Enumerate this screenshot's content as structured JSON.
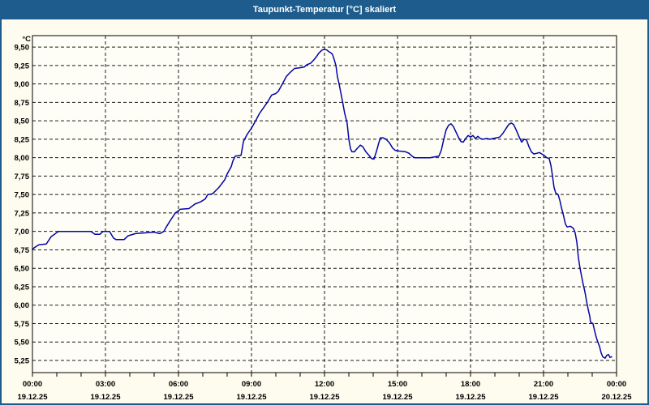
{
  "window": {
    "title": "Taupunkt-Temperatur [°C] skaliert"
  },
  "colors": {
    "titlebar_background": "#1d5c8c",
    "titlebar_text": "#ffffff",
    "window_border": "#1d5c8c",
    "page_background": "#fdfcee",
    "plot_background": "#fffef6",
    "grid_color": "#1a1a1a",
    "axis_color": "#000000",
    "line_color": "#0303a6"
  },
  "chart_data": {
    "type": "line",
    "title": "Taupunkt-Temperatur [°C] skaliert",
    "xlabel": "",
    "ylabel": "°C",
    "unit_label": "°C",
    "legend": "none",
    "grid": "dashed",
    "xlim_hours": [
      0,
      24
    ],
    "ylim": [
      5.085,
      9.655
    ],
    "y_axis": {
      "tick_values": [
        9.5,
        9.25,
        9.0,
        8.75,
        8.5,
        8.25,
        8.0,
        7.75,
        7.5,
        7.25,
        7.0,
        6.75,
        6.5,
        6.25,
        6.0,
        5.75,
        5.5,
        5.25
      ],
      "tick_labels": [
        "9,50",
        "9,25",
        "9,00",
        "8,75",
        "8,50",
        "8,25",
        "8,00",
        "7,75",
        "7,50",
        "7,25",
        "7,00",
        "6,75",
        "6,50",
        "6,25",
        "6,00",
        "5,75",
        "5,50",
        "5,25"
      ]
    },
    "x_axis": {
      "minor_tick_every_hours": 1,
      "ticks": [
        {
          "hour": 0,
          "time": "00:00",
          "date": "19.12.25"
        },
        {
          "hour": 3,
          "time": "03:00",
          "date": "19.12.25"
        },
        {
          "hour": 6,
          "time": "06:00",
          "date": "19.12.25"
        },
        {
          "hour": 9,
          "time": "09:00",
          "date": "19.12.25"
        },
        {
          "hour": 12,
          "time": "12:00",
          "date": "19.12.25"
        },
        {
          "hour": 15,
          "time": "15:00",
          "date": "19.12.25"
        },
        {
          "hour": 18,
          "time": "18:00",
          "date": "19.12.25"
        },
        {
          "hour": 21,
          "time": "21:00",
          "date": "19.12.25"
        },
        {
          "hour": 24,
          "time": "00:00",
          "date": "20.12.25"
        }
      ]
    },
    "series": [
      {
        "name": "Taupunkt-Temperatur",
        "color": "#0303a6",
        "points": [
          [
            0.0,
            6.76
          ],
          [
            0.17,
            6.8
          ],
          [
            0.27,
            6.82
          ],
          [
            0.57,
            6.83
          ],
          [
            0.77,
            6.93
          ],
          [
            1.07,
            7.0
          ],
          [
            2.4,
            7.0
          ],
          [
            2.57,
            6.96
          ],
          [
            2.77,
            6.96
          ],
          [
            2.9,
            7.0
          ],
          [
            3.17,
            7.0
          ],
          [
            3.33,
            6.91
          ],
          [
            3.43,
            6.89
          ],
          [
            3.77,
            6.89
          ],
          [
            3.93,
            6.94
          ],
          [
            4.23,
            6.97
          ],
          [
            5.0,
            6.99
          ],
          [
            5.23,
            6.97
          ],
          [
            5.4,
            7.0
          ],
          [
            5.5,
            7.06
          ],
          [
            5.67,
            7.15
          ],
          [
            5.87,
            7.25
          ],
          [
            6.0,
            7.28
          ],
          [
            6.07,
            7.3
          ],
          [
            6.43,
            7.31
          ],
          [
            6.67,
            7.37
          ],
          [
            6.9,
            7.4
          ],
          [
            7.1,
            7.44
          ],
          [
            7.2,
            7.5
          ],
          [
            7.4,
            7.51
          ],
          [
            7.67,
            7.6
          ],
          [
            7.9,
            7.7
          ],
          [
            8.0,
            7.78
          ],
          [
            8.17,
            7.88
          ],
          [
            8.23,
            7.95
          ],
          [
            8.33,
            8.02
          ],
          [
            8.57,
            8.03
          ],
          [
            8.67,
            8.22
          ],
          [
            8.83,
            8.32
          ],
          [
            9.0,
            8.4
          ],
          [
            9.17,
            8.5
          ],
          [
            9.33,
            8.6
          ],
          [
            9.5,
            8.68
          ],
          [
            9.67,
            8.76
          ],
          [
            9.83,
            8.85
          ],
          [
            10.0,
            8.87
          ],
          [
            10.1,
            8.9
          ],
          [
            10.27,
            9.0
          ],
          [
            10.43,
            9.1
          ],
          [
            10.57,
            9.15
          ],
          [
            10.67,
            9.18
          ],
          [
            10.77,
            9.21
          ],
          [
            11.0,
            9.22
          ],
          [
            11.17,
            9.23
          ],
          [
            11.27,
            9.26
          ],
          [
            11.43,
            9.28
          ],
          [
            11.57,
            9.33
          ],
          [
            11.67,
            9.37
          ],
          [
            11.77,
            9.42
          ],
          [
            11.9,
            9.46
          ],
          [
            12.0,
            9.47
          ],
          [
            12.1,
            9.46
          ],
          [
            12.17,
            9.44
          ],
          [
            12.27,
            9.42
          ],
          [
            12.33,
            9.4
          ],
          [
            12.4,
            9.33
          ],
          [
            12.47,
            9.25
          ],
          [
            12.53,
            9.1
          ],
          [
            12.6,
            9.0
          ],
          [
            12.67,
            8.88
          ],
          [
            12.73,
            8.78
          ],
          [
            12.83,
            8.6
          ],
          [
            12.93,
            8.47
          ],
          [
            13.0,
            8.25
          ],
          [
            13.07,
            8.12
          ],
          [
            13.13,
            8.08
          ],
          [
            13.23,
            8.08
          ],
          [
            13.33,
            8.12
          ],
          [
            13.47,
            8.17
          ],
          [
            13.57,
            8.15
          ],
          [
            13.7,
            8.08
          ],
          [
            13.83,
            8.03
          ],
          [
            13.93,
            7.99
          ],
          [
            14.03,
            7.98
          ],
          [
            14.13,
            8.08
          ],
          [
            14.23,
            8.2
          ],
          [
            14.3,
            8.27
          ],
          [
            14.4,
            8.27
          ],
          [
            14.53,
            8.25
          ],
          [
            14.67,
            8.2
          ],
          [
            14.8,
            8.13
          ],
          [
            14.9,
            8.1
          ],
          [
            15.07,
            8.09
          ],
          [
            15.33,
            8.08
          ],
          [
            15.47,
            8.06
          ],
          [
            15.6,
            8.02
          ],
          [
            15.7,
            8.0
          ],
          [
            16.33,
            8.0
          ],
          [
            16.7,
            8.02
          ],
          [
            16.8,
            8.1
          ],
          [
            16.9,
            8.25
          ],
          [
            17.0,
            8.38
          ],
          [
            17.1,
            8.44
          ],
          [
            17.2,
            8.46
          ],
          [
            17.3,
            8.42
          ],
          [
            17.4,
            8.35
          ],
          [
            17.5,
            8.28
          ],
          [
            17.6,
            8.22
          ],
          [
            17.7,
            8.21
          ],
          [
            17.8,
            8.26
          ],
          [
            17.9,
            8.3
          ],
          [
            18.0,
            8.28
          ],
          [
            18.1,
            8.3
          ],
          [
            18.2,
            8.26
          ],
          [
            18.3,
            8.29
          ],
          [
            18.4,
            8.26
          ],
          [
            18.5,
            8.25
          ],
          [
            18.67,
            8.26
          ],
          [
            18.8,
            8.25
          ],
          [
            18.93,
            8.26
          ],
          [
            19.07,
            8.27
          ],
          [
            19.2,
            8.28
          ],
          [
            19.33,
            8.33
          ],
          [
            19.47,
            8.4
          ],
          [
            19.57,
            8.45
          ],
          [
            19.67,
            8.47
          ],
          [
            19.77,
            8.45
          ],
          [
            19.87,
            8.38
          ],
          [
            20.0,
            8.28
          ],
          [
            20.1,
            8.21
          ],
          [
            20.2,
            8.25
          ],
          [
            20.3,
            8.24
          ],
          [
            20.4,
            8.15
          ],
          [
            20.5,
            8.08
          ],
          [
            20.6,
            8.05
          ],
          [
            20.73,
            8.06
          ],
          [
            20.83,
            8.07
          ],
          [
            20.93,
            8.05
          ],
          [
            21.03,
            8.03
          ],
          [
            21.13,
            8.0
          ],
          [
            21.23,
            7.99
          ],
          [
            21.3,
            7.9
          ],
          [
            21.37,
            7.75
          ],
          [
            21.43,
            7.6
          ],
          [
            21.5,
            7.52
          ],
          [
            21.6,
            7.5
          ],
          [
            21.67,
            7.42
          ],
          [
            21.73,
            7.33
          ],
          [
            21.83,
            7.2
          ],
          [
            21.9,
            7.1
          ],
          [
            21.97,
            7.06
          ],
          [
            22.1,
            7.07
          ],
          [
            22.23,
            7.04
          ],
          [
            22.3,
            6.98
          ],
          [
            22.37,
            6.85
          ],
          [
            22.43,
            6.65
          ],
          [
            22.5,
            6.5
          ],
          [
            22.57,
            6.38
          ],
          [
            22.63,
            6.28
          ],
          [
            22.7,
            6.18
          ],
          [
            22.77,
            6.05
          ],
          [
            22.83,
            5.95
          ],
          [
            22.9,
            5.85
          ],
          [
            22.93,
            5.77
          ],
          [
            23.03,
            5.75
          ],
          [
            23.1,
            5.65
          ],
          [
            23.17,
            5.56
          ],
          [
            23.23,
            5.5
          ],
          [
            23.3,
            5.44
          ],
          [
            23.37,
            5.35
          ],
          [
            23.43,
            5.3
          ],
          [
            23.53,
            5.28
          ],
          [
            23.6,
            5.32
          ],
          [
            23.67,
            5.33
          ],
          [
            23.73,
            5.29
          ],
          [
            23.8,
            5.3
          ]
        ]
      }
    ]
  }
}
